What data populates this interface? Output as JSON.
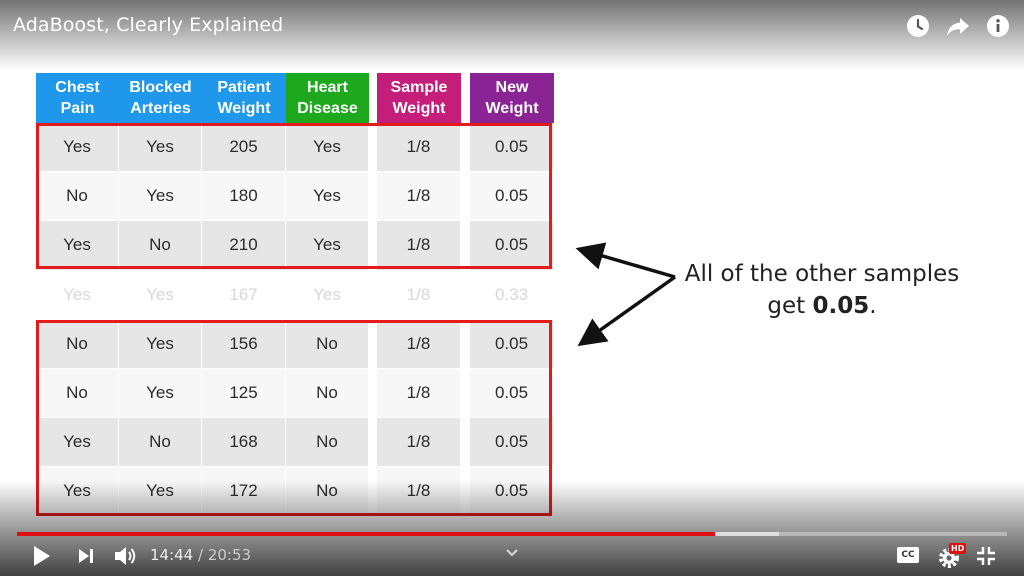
{
  "video": {
    "title": "AdaBoost, Clearly Explained"
  },
  "top_icons": [
    "watch-later-icon",
    "share-icon",
    "info-icon"
  ],
  "table": {
    "headers": [
      {
        "label_line1": "Chest",
        "label_line2": "Pain",
        "color": "#1f97ea"
      },
      {
        "label_line1": "Blocked",
        "label_line2": "Arteries",
        "color": "#1f97ea"
      },
      {
        "label_line1": "Patient",
        "label_line2": "Weight",
        "color": "#1f97ea"
      },
      {
        "label_line1": "Heart",
        "label_line2": "Disease",
        "color": "#1da81d"
      },
      {
        "label_line1": "Sample",
        "label_line2": "Weight",
        "color": "#c41e7a"
      },
      {
        "label_line1": "New",
        "label_line2": "Weight",
        "color": "#8a2494"
      }
    ],
    "rows": [
      [
        "Yes",
        "Yes",
        "205",
        "Yes",
        "1/8",
        "0.05"
      ],
      [
        "No",
        "Yes",
        "180",
        "Yes",
        "1/8",
        "0.05"
      ],
      [
        "Yes",
        "No",
        "210",
        "Yes",
        "1/8",
        "0.05"
      ],
      [
        "Yes",
        "Yes",
        "167",
        "Yes",
        "1/8",
        "0.33"
      ],
      [
        "No",
        "Yes",
        "156",
        "No",
        "1/8",
        "0.05"
      ],
      [
        "No",
        "Yes",
        "125",
        "No",
        "1/8",
        "0.05"
      ],
      [
        "Yes",
        "No",
        "168",
        "No",
        "1/8",
        "0.05"
      ],
      [
        "Yes",
        "Yes",
        "172",
        "No",
        "1/8",
        "0.05"
      ]
    ],
    "faded_row_index": 3,
    "highlight_color": "#e21c1c"
  },
  "annotation": {
    "line1": "All of the other samples",
    "line2_prefix": "get ",
    "line2_bold": "0.05",
    "line2_suffix": "."
  },
  "player": {
    "current_time": "14:44",
    "separator": " / ",
    "duration": "20:53",
    "played_fraction": 0.705,
    "buffered_fraction": 0.77,
    "hd_badge": "HD",
    "cc_label": "CC",
    "progress_color": "#e01010"
  }
}
